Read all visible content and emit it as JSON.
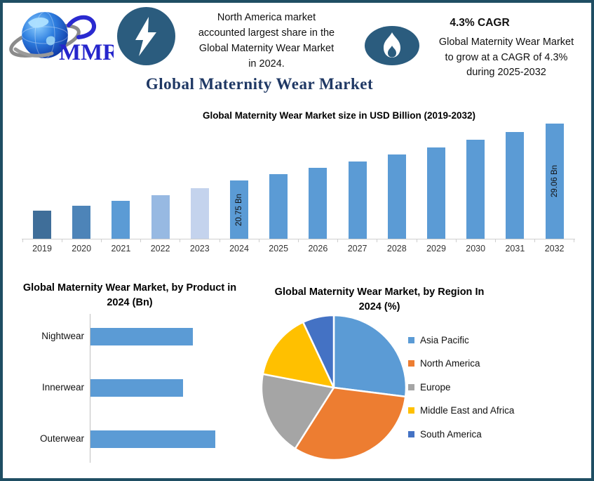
{
  "frame": {
    "border_color": "#1f4e63",
    "icon_circle_color": "#2b5c7e",
    "accent_blue": "#5b9bd5",
    "title_navy": "#1f3864"
  },
  "header": {
    "logo_text": "MMR",
    "left_note_lines": [
      "North America market",
      "accounted largest share in the",
      "Global Maternity Wear Market",
      "in 2024."
    ],
    "cagr_heading": "4.3% CAGR",
    "cagr_note_lines": [
      "Global Maternity Wear Market",
      "to grow at a CAGR of 4.3%",
      "during 2025-2032"
    ],
    "main_title": "Global Maternity Wear Market"
  },
  "chart_data": [
    {
      "type": "bar",
      "title": "Global Maternity Wear Market size in USD Billion (2019-2032)",
      "categories": [
        "2019",
        "2020",
        "2021",
        "2022",
        "2023",
        "2024",
        "2025",
        "2026",
        "2027",
        "2028",
        "2029",
        "2030",
        "2031",
        "2032"
      ],
      "values": [
        16.3,
        17.0,
        17.8,
        18.6,
        19.6,
        20.75,
        21.64,
        22.57,
        23.54,
        24.55,
        25.61,
        26.71,
        27.86,
        29.06
      ],
      "bar_labels": {
        "5": "20.75 Bn",
        "13": "29.06 Bn"
      },
      "bar_colors": [
        "#3f6e99",
        "#4d84b8",
        "#5b9bd5",
        "#97b9e2",
        "#c4d3ed",
        "#5b9bd5",
        "#5b9bd5",
        "#5b9bd5",
        "#5b9bd5",
        "#5b9bd5",
        "#5b9bd5",
        "#5b9bd5",
        "#5b9bd5",
        "#5b9bd5"
      ],
      "xlabel": "",
      "ylabel": "",
      "axis_min": 12.2,
      "axis_max": 29.06,
      "grid": false,
      "legend": false
    },
    {
      "type": "bar",
      "orientation": "horizontal",
      "title": "Global Maternity Wear Market, by Product in 2024 (Bn)",
      "categories": [
        "Nightwear",
        "Innerwear",
        "Outerwear"
      ],
      "values": [
        7.3,
        6.6,
        8.9
      ],
      "color": "#5b9bd5",
      "axis_max": 9.0,
      "grid": false,
      "legend": false
    },
    {
      "type": "pie",
      "title": "Global Maternity Wear Market, by Region In 2024 (%)",
      "labels": [
        "Asia Pacific",
        "North America",
        "Europe",
        "Middle East and Africa",
        "South America"
      ],
      "values": [
        27,
        32,
        19,
        15,
        7
      ],
      "colors": [
        "#5b9bd5",
        "#ed7d31",
        "#a5a5a5",
        "#ffc000",
        "#4472c4"
      ],
      "legend_position": "right"
    }
  ]
}
